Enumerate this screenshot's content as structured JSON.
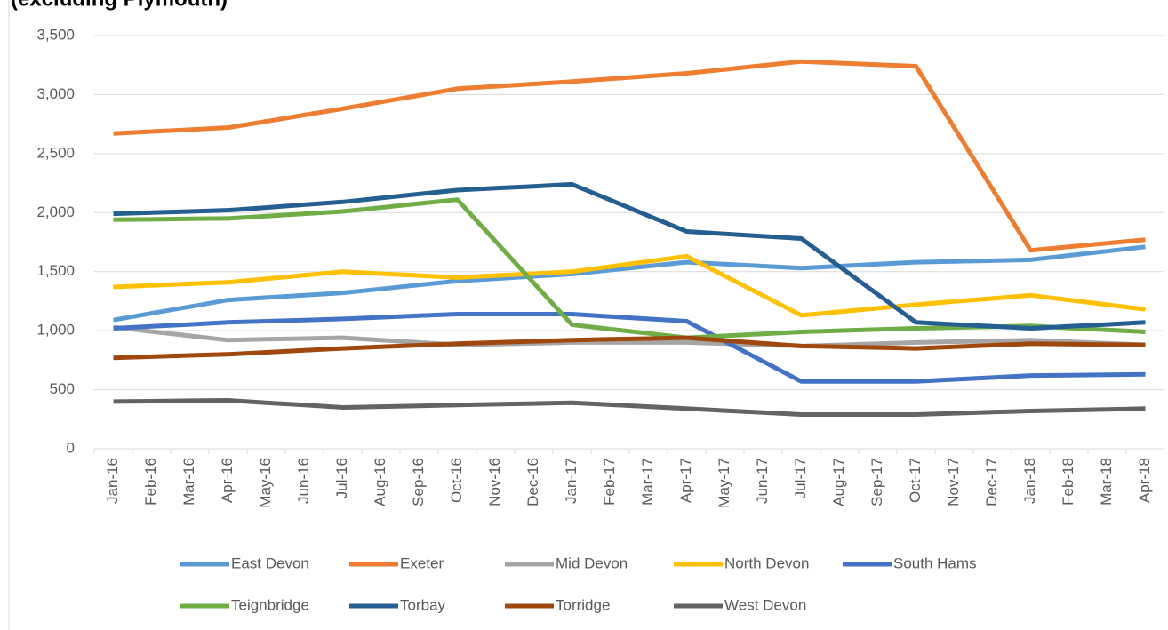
{
  "chart_data": {
    "type": "line",
    "title": "(excluding Plymouth)",
    "categories": [
      "Jan-16",
      "Feb-16",
      "Mar-16",
      "Apr-16",
      "May-16",
      "Jun-16",
      "Jul-16",
      "Aug-16",
      "Sep-16",
      "Oct-16",
      "Nov-16",
      "Dec-16",
      "Jan-17",
      "Feb-17",
      "Mar-17",
      "Apr-17",
      "May-17",
      "Jun-17",
      "Jul-17",
      "Aug-17",
      "Sep-17",
      "Oct-17",
      "Nov-17",
      "Dec-17",
      "Jan-18",
      "Feb-18",
      "Mar-18",
      "Apr-18"
    ],
    "series": [
      {
        "name": "East Devon",
        "color": "#5b9bd5",
        "values": [
          1090,
          1147,
          1203,
          1260,
          1280,
          1300,
          1320,
          1353,
          1387,
          1420,
          1440,
          1460,
          1480,
          1513,
          1547,
          1580,
          1563,
          1547,
          1530,
          1547,
          1563,
          1580,
          1587,
          1593,
          1600,
          1637,
          1673,
          1710
        ]
      },
      {
        "name": "Exeter",
        "color": "#ed7d31",
        "values": [
          2670,
          2687,
          2703,
          2720,
          2773,
          2827,
          2880,
          2937,
          2993,
          3050,
          3070,
          3090,
          3110,
          3133,
          3157,
          3180,
          3213,
          3247,
          3280,
          3267,
          3253,
          3240,
          2720,
          2200,
          1680,
          1710,
          1740,
          1770
        ]
      },
      {
        "name": "Mid Devon",
        "color": "#a5a5a5",
        "values": [
          1030,
          993,
          957,
          920,
          927,
          933,
          940,
          920,
          900,
          880,
          887,
          893,
          900,
          900,
          900,
          900,
          890,
          880,
          870,
          880,
          890,
          900,
          907,
          913,
          920,
          907,
          893,
          880
        ]
      },
      {
        "name": "North Devon",
        "color": "#ffc000",
        "values": [
          1370,
          1383,
          1397,
          1410,
          1440,
          1470,
          1500,
          1483,
          1467,
          1450,
          1467,
          1483,
          1500,
          1543,
          1587,
          1630,
          1463,
          1297,
          1130,
          1160,
          1190,
          1220,
          1247,
          1273,
          1300,
          1260,
          1220,
          1180
        ]
      },
      {
        "name": "South Hams",
        "color": "#4472c4",
        "values": [
          1020,
          1037,
          1053,
          1070,
          1080,
          1090,
          1100,
          1113,
          1127,
          1140,
          1140,
          1140,
          1140,
          1120,
          1100,
          1080,
          910,
          740,
          570,
          570,
          570,
          570,
          587,
          603,
          620,
          623,
          627,
          630
        ]
      },
      {
        "name": "Teignbridge",
        "color": "#70ad47",
        "values": [
          1940,
          1943,
          1947,
          1950,
          1970,
          1990,
          2010,
          2043,
          2077,
          2110,
          1757,
          1403,
          1050,
          1013,
          977,
          940,
          957,
          973,
          990,
          1000,
          1010,
          1020,
          1027,
          1033,
          1040,
          1023,
          1007,
          990
        ]
      },
      {
        "name": "Torbay",
        "color": "#255e91",
        "values": [
          1990,
          2000,
          2010,
          2020,
          2043,
          2067,
          2090,
          2123,
          2157,
          2190,
          2207,
          2223,
          2240,
          2107,
          1973,
          1840,
          1820,
          1800,
          1780,
          1543,
          1307,
          1070,
          1053,
          1037,
          1020,
          1037,
          1053,
          1070
        ]
      },
      {
        "name": "Torridge",
        "color": "#9e480e",
        "values": [
          770,
          780,
          790,
          800,
          817,
          833,
          850,
          863,
          877,
          890,
          900,
          910,
          920,
          927,
          933,
          940,
          917,
          893,
          870,
          863,
          857,
          850,
          863,
          877,
          890,
          887,
          883,
          880
        ]
      },
      {
        "name": "West Devon",
        "color": "#636363",
        "values": [
          400,
          403,
          407,
          410,
          390,
          370,
          350,
          357,
          363,
          370,
          377,
          383,
          390,
          373,
          357,
          340,
          323,
          307,
          290,
          290,
          290,
          290,
          300,
          310,
          320,
          327,
          333,
          340
        ]
      }
    ],
    "ylim": [
      0,
      3500
    ],
    "yticks": [
      0,
      500,
      {
        "value": 1000,
        "label": "1,000"
      },
      {
        "value": 1500,
        "label": "1,500"
      },
      {
        "value": 2000,
        "label": "2,000"
      },
      {
        "value": 2500,
        "label": "2,500"
      },
      {
        "value": 3000,
        "label": "3,000"
      },
      {
        "value": 3500,
        "label": "3,500"
      }
    ],
    "grid": true
  }
}
